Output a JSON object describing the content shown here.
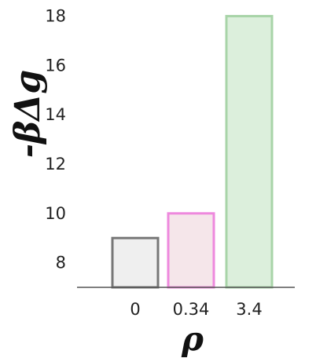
{
  "chart_data": {
    "type": "bar",
    "categories": [
      "0",
      "0.34",
      "3.4"
    ],
    "values": [
      9.0,
      10.0,
      18.0
    ],
    "title": "",
    "xlabel": "ρ",
    "ylabel": "-βΔg",
    "ylim": [
      7.0,
      18.4
    ],
    "yticks": [
      "8",
      "10",
      "12",
      "14",
      "16",
      "18"
    ],
    "grid": false,
    "legend": "none",
    "colors": {
      "fills": [
        "#efefef",
        "#f5e6ea",
        "#dcefdc"
      ],
      "strokes": [
        "#777777",
        "#ee88dd",
        "#a8d4a8"
      ]
    }
  }
}
